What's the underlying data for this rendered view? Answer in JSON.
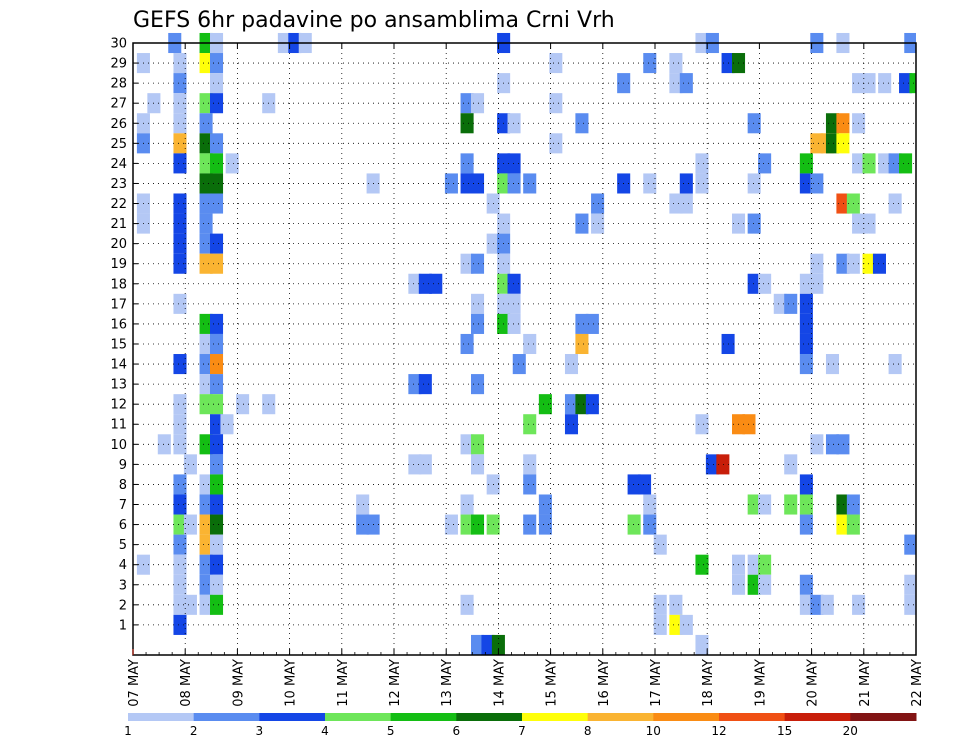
{
  "chart_data": {
    "type": "heatmap",
    "title": "GEFS 6hr padavine po ansamblima Crni Vrh",
    "xlabel": "",
    "ylabel": "",
    "x_tick_labels": [
      "07 MAY",
      "08 MAY",
      "09 MAY",
      "10 MAY",
      "11 MAY",
      "12 MAY",
      "13 MAY",
      "14 MAY",
      "15 MAY",
      "16 MAY",
      "17 MAY",
      "18 MAY",
      "19 MAY",
      "20 MAY",
      "21 MAY",
      "22 MAY"
    ],
    "y_tick_labels": [
      "1",
      "2",
      "3",
      "4",
      "5",
      "6",
      "7",
      "8",
      "9",
      "10",
      "11",
      "12",
      "13",
      "14",
      "15",
      "16",
      "17",
      "18",
      "19",
      "20",
      "21",
      "22",
      "23",
      "24",
      "25",
      "26",
      "27",
      "28",
      "29",
      "30"
    ],
    "y_range": [
      0,
      30
    ],
    "x_range_days": [
      0,
      15
    ],
    "grid": true,
    "legend_placement": "bottom",
    "colorbar": {
      "labels": [
        "1",
        "2",
        "3",
        "4",
        "5",
        "6",
        "7",
        "8",
        "10",
        "12",
        "15",
        "20"
      ],
      "colors": [
        "#b4c8f5",
        "#5a8cf0",
        "#1446e6",
        "#6ee65a",
        "#14be14",
        "#0a6e0a",
        "#ffff0a",
        "#fab432",
        "#fa8c14",
        "#f05014",
        "#c81e0a",
        "#821414"
      ]
    },
    "cells": [
      [
        30,
        0.8,
        2
      ],
      [
        30,
        1.4,
        5
      ],
      [
        30,
        1.6,
        1
      ],
      [
        30,
        2.9,
        1
      ],
      [
        30,
        3.1,
        3
      ],
      [
        30,
        3.3,
        1
      ],
      [
        30,
        7.1,
        3
      ],
      [
        30,
        10.9,
        1
      ],
      [
        30,
        11.1,
        2
      ],
      [
        30,
        13.1,
        2
      ],
      [
        30,
        13.6,
        1
      ],
      [
        30,
        14.9,
        2
      ],
      [
        29,
        0.2,
        1
      ],
      [
        29,
        0.9,
        1
      ],
      [
        29,
        1.4,
        7
      ],
      [
        29,
        1.6,
        2
      ],
      [
        29,
        8.1,
        1
      ],
      [
        29,
        9.9,
        2
      ],
      [
        29,
        10.4,
        1
      ],
      [
        29,
        11.4,
        3
      ],
      [
        29,
        11.6,
        6
      ],
      [
        28,
        0.9,
        2
      ],
      [
        28,
        1.6,
        1
      ],
      [
        28,
        7.1,
        1
      ],
      [
        28,
        9.4,
        2
      ],
      [
        28,
        10.4,
        1
      ],
      [
        28,
        10.6,
        2
      ],
      [
        28,
        13.9,
        1
      ],
      [
        28,
        14.1,
        1
      ],
      [
        28,
        14.4,
        1
      ],
      [
        28,
        14.8,
        3
      ],
      [
        28,
        15.0,
        5
      ],
      [
        27,
        0.4,
        1
      ],
      [
        27,
        0.9,
        1
      ],
      [
        27,
        1.4,
        4
      ],
      [
        27,
        1.6,
        3
      ],
      [
        27,
        2.6,
        1
      ],
      [
        27,
        6.4,
        2
      ],
      [
        27,
        6.6,
        1
      ],
      [
        27,
        8.1,
        1
      ],
      [
        26,
        0.2,
        1
      ],
      [
        26,
        0.9,
        1
      ],
      [
        26,
        1.4,
        2
      ],
      [
        26,
        6.4,
        6
      ],
      [
        26,
        7.1,
        3
      ],
      [
        26,
        7.3,
        1
      ],
      [
        26,
        8.6,
        2
      ],
      [
        26,
        11.9,
        2
      ],
      [
        26,
        13.4,
        6
      ],
      [
        26,
        13.6,
        9
      ],
      [
        26,
        13.9,
        1
      ],
      [
        25,
        0.2,
        2
      ],
      [
        25,
        0.9,
        8
      ],
      [
        25,
        1.4,
        6
      ],
      [
        25,
        1.6,
        2
      ],
      [
        25,
        8.1,
        1
      ],
      [
        25,
        13.1,
        8
      ],
      [
        25,
        13.3,
        8
      ],
      [
        25,
        13.4,
        6
      ],
      [
        25,
        13.6,
        7
      ],
      [
        24,
        0.9,
        3
      ],
      [
        24,
        1.4,
        4
      ],
      [
        24,
        1.6,
        5
      ],
      [
        24,
        1.9,
        1
      ],
      [
        24,
        6.4,
        2
      ],
      [
        24,
        7.1,
        3
      ],
      [
        24,
        7.3,
        3
      ],
      [
        24,
        10.9,
        1
      ],
      [
        24,
        12.1,
        2
      ],
      [
        24,
        12.9,
        5
      ],
      [
        24,
        13.9,
        1
      ],
      [
        24,
        14.1,
        4
      ],
      [
        24,
        14.4,
        1
      ],
      [
        24,
        14.6,
        2
      ],
      [
        24,
        14.8,
        5
      ],
      [
        23,
        1.4,
        6
      ],
      [
        23,
        1.6,
        6
      ],
      [
        23,
        4.6,
        1
      ],
      [
        23,
        6.1,
        2
      ],
      [
        23,
        6.4,
        3
      ],
      [
        23,
        6.6,
        3
      ],
      [
        23,
        7.1,
        4
      ],
      [
        23,
        7.3,
        2
      ],
      [
        23,
        7.6,
        2
      ],
      [
        23,
        9.4,
        3
      ],
      [
        23,
        9.9,
        1
      ],
      [
        23,
        10.6,
        3
      ],
      [
        23,
        10.9,
        1
      ],
      [
        23,
        11.9,
        1
      ],
      [
        23,
        12.9,
        3
      ],
      [
        23,
        13.1,
        2
      ],
      [
        22,
        0.2,
        1
      ],
      [
        22,
        0.9,
        3
      ],
      [
        22,
        1.4,
        2
      ],
      [
        22,
        1.6,
        2
      ],
      [
        22,
        6.9,
        1
      ],
      [
        22,
        8.9,
        2
      ],
      [
        22,
        10.4,
        1
      ],
      [
        22,
        10.6,
        1
      ],
      [
        22,
        13.6,
        10
      ],
      [
        22,
        13.8,
        4
      ],
      [
        22,
        14.6,
        1
      ],
      [
        21,
        0.2,
        1
      ],
      [
        21,
        0.9,
        3
      ],
      [
        21,
        1.4,
        2
      ],
      [
        21,
        7.1,
        1
      ],
      [
        21,
        8.6,
        2
      ],
      [
        21,
        8.9,
        1
      ],
      [
        21,
        11.6,
        1
      ],
      [
        21,
        11.9,
        2
      ],
      [
        21,
        13.9,
        1
      ],
      [
        21,
        14.1,
        1
      ],
      [
        20,
        0.9,
        3
      ],
      [
        20,
        1.4,
        2
      ],
      [
        20,
        1.6,
        3
      ],
      [
        20,
        6.9,
        1
      ],
      [
        20,
        7.1,
        2
      ],
      [
        19,
        0.9,
        3
      ],
      [
        19,
        1.4,
        8
      ],
      [
        19,
        1.6,
        8
      ],
      [
        19,
        6.4,
        1
      ],
      [
        19,
        6.6,
        2
      ],
      [
        19,
        7.1,
        1
      ],
      [
        19,
        13.1,
        1
      ],
      [
        19,
        13.6,
        2
      ],
      [
        19,
        13.8,
        1
      ],
      [
        19,
        14.1,
        7
      ],
      [
        19,
        14.3,
        3
      ],
      [
        18,
        5.4,
        1
      ],
      [
        18,
        5.6,
        3
      ],
      [
        18,
        5.8,
        3
      ],
      [
        18,
        7.1,
        4
      ],
      [
        18,
        7.3,
        3
      ],
      [
        18,
        11.9,
        3
      ],
      [
        18,
        12.1,
        1
      ],
      [
        18,
        12.9,
        1
      ],
      [
        18,
        13.1,
        1
      ],
      [
        17,
        0.9,
        1
      ],
      [
        17,
        6.6,
        1
      ],
      [
        17,
        7.1,
        1
      ],
      [
        17,
        7.3,
        1
      ],
      [
        17,
        12.4,
        1
      ],
      [
        17,
        12.6,
        2
      ],
      [
        17,
        12.9,
        3
      ],
      [
        16,
        1.4,
        5
      ],
      [
        16,
        1.6,
        3
      ],
      [
        16,
        6.6,
        2
      ],
      [
        16,
        7.1,
        5
      ],
      [
        16,
        7.3,
        1
      ],
      [
        16,
        8.6,
        2
      ],
      [
        16,
        8.8,
        2
      ],
      [
        16,
        12.9,
        3
      ],
      [
        15,
        1.4,
        1
      ],
      [
        15,
        1.6,
        2
      ],
      [
        15,
        6.4,
        2
      ],
      [
        15,
        7.6,
        1
      ],
      [
        15,
        8.6,
        8
      ],
      [
        15,
        11.4,
        3
      ],
      [
        15,
        12.9,
        3
      ],
      [
        14,
        0.9,
        3
      ],
      [
        14,
        1.4,
        2
      ],
      [
        14,
        1.6,
        9
      ],
      [
        14,
        7.4,
        2
      ],
      [
        14,
        8.4,
        1
      ],
      [
        14,
        12.9,
        2
      ],
      [
        14,
        13.4,
        1
      ],
      [
        14,
        14.6,
        1
      ],
      [
        13,
        1.4,
        1
      ],
      [
        13,
        1.6,
        2
      ],
      [
        13,
        5.4,
        2
      ],
      [
        13,
        5.6,
        3
      ],
      [
        13,
        6.6,
        2
      ],
      [
        12,
        0.9,
        1
      ],
      [
        12,
        1.4,
        4
      ],
      [
        12,
        1.6,
        4
      ],
      [
        12,
        2.1,
        1
      ],
      [
        12,
        2.6,
        1
      ],
      [
        12,
        7.9,
        5
      ],
      [
        12,
        8.4,
        2
      ],
      [
        12,
        8.6,
        6
      ],
      [
        12,
        8.8,
        3
      ],
      [
        11,
        0.9,
        1
      ],
      [
        11,
        1.6,
        3
      ],
      [
        11,
        1.8,
        1
      ],
      [
        11,
        7.6,
        4
      ],
      [
        11,
        8.4,
        3
      ],
      [
        11,
        10.9,
        1
      ],
      [
        11,
        11.6,
        9
      ],
      [
        11,
        11.8,
        9
      ],
      [
        10,
        0.6,
        1
      ],
      [
        10,
        0.9,
        1
      ],
      [
        10,
        1.4,
        5
      ],
      [
        10,
        1.6,
        3
      ],
      [
        10,
        6.4,
        1
      ],
      [
        10,
        6.6,
        4
      ],
      [
        10,
        13.1,
        1
      ],
      [
        10,
        13.4,
        2
      ],
      [
        10,
        13.6,
        2
      ],
      [
        9,
        1.1,
        1
      ],
      [
        9,
        1.6,
        2
      ],
      [
        9,
        5.4,
        1
      ],
      [
        9,
        5.6,
        1
      ],
      [
        9,
        6.6,
        1
      ],
      [
        9,
        7.6,
        1
      ],
      [
        9,
        11.1,
        3
      ],
      [
        9,
        11.3,
        11
      ],
      [
        9,
        12.6,
        1
      ],
      [
        8,
        0.9,
        2
      ],
      [
        8,
        1.4,
        1
      ],
      [
        8,
        1.6,
        5
      ],
      [
        8,
        6.9,
        1
      ],
      [
        8,
        7.6,
        2
      ],
      [
        8,
        9.6,
        3
      ],
      [
        8,
        9.8,
        3
      ],
      [
        8,
        12.9,
        3
      ],
      [
        7,
        0.9,
        3
      ],
      [
        7,
        1.4,
        2
      ],
      [
        7,
        1.6,
        3
      ],
      [
        7,
        4.4,
        1
      ],
      [
        7,
        6.4,
        1
      ],
      [
        7,
        7.9,
        2
      ],
      [
        7,
        9.9,
        1
      ],
      [
        7,
        11.9,
        4
      ],
      [
        7,
        12.1,
        1
      ],
      [
        7,
        12.6,
        4
      ],
      [
        7,
        12.9,
        4
      ],
      [
        7,
        13.6,
        6
      ],
      [
        7,
        13.8,
        2
      ],
      [
        6,
        0.9,
        4
      ],
      [
        6,
        1.1,
        1
      ],
      [
        6,
        1.4,
        8
      ],
      [
        6,
        1.6,
        6
      ],
      [
        6,
        4.4,
        2
      ],
      [
        6,
        4.6,
        2
      ],
      [
        6,
        6.1,
        1
      ],
      [
        6,
        6.4,
        4
      ],
      [
        6,
        6.6,
        5
      ],
      [
        6,
        6.9,
        4
      ],
      [
        6,
        7.6,
        2
      ],
      [
        6,
        7.9,
        2
      ],
      [
        6,
        9.6,
        4
      ],
      [
        6,
        9.9,
        2
      ],
      [
        6,
        12.9,
        2
      ],
      [
        6,
        13.6,
        7
      ],
      [
        6,
        13.8,
        4
      ],
      [
        5,
        0.9,
        2
      ],
      [
        5,
        1.4,
        8
      ],
      [
        5,
        1.6,
        1
      ],
      [
        5,
        10.1,
        1
      ],
      [
        5,
        14.9,
        2
      ],
      [
        4,
        0.2,
        1
      ],
      [
        4,
        0.9,
        1
      ],
      [
        4,
        1.4,
        2
      ],
      [
        4,
        1.6,
        3
      ],
      [
        4,
        10.9,
        5
      ],
      [
        4,
        11.6,
        1
      ],
      [
        4,
        11.9,
        1
      ],
      [
        4,
        12.1,
        4
      ],
      [
        3,
        0.9,
        1
      ],
      [
        3,
        1.4,
        2
      ],
      [
        3,
        1.6,
        1
      ],
      [
        3,
        11.6,
        1
      ],
      [
        3,
        11.9,
        5
      ],
      [
        3,
        12.1,
        1
      ],
      [
        3,
        12.9,
        2
      ],
      [
        3,
        14.9,
        1
      ],
      [
        2,
        0.9,
        1
      ],
      [
        2,
        1.1,
        1
      ],
      [
        2,
        1.4,
        1
      ],
      [
        2,
        1.6,
        5
      ],
      [
        2,
        6.4,
        1
      ],
      [
        2,
        10.1,
        1
      ],
      [
        2,
        10.4,
        1
      ],
      [
        2,
        12.9,
        1
      ],
      [
        2,
        13.1,
        2
      ],
      [
        2,
        13.3,
        1
      ],
      [
        2,
        13.9,
        1
      ],
      [
        2,
        14.9,
        1
      ],
      [
        1,
        0.9,
        3
      ],
      [
        1,
        10.1,
        1
      ],
      [
        1,
        10.4,
        7
      ],
      [
        1,
        10.6,
        1
      ],
      [
        0,
        6.6,
        2
      ],
      [
        0,
        6.8,
        3
      ],
      [
        0,
        7.0,
        6
      ],
      [
        0,
        10.9,
        1
      ]
    ]
  }
}
